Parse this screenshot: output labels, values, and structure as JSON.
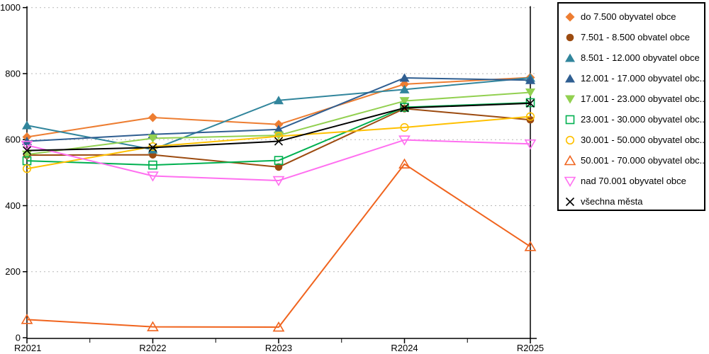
{
  "chart_data": {
    "type": "line",
    "title": "",
    "xlabel": "",
    "ylabel": "",
    "categories": [
      "R2021",
      "R2022",
      "R2023",
      "R2024",
      "R2025"
    ],
    "y_ticks": [
      0,
      200,
      400,
      600,
      800,
      1000
    ],
    "ylim": [
      0,
      1000
    ],
    "grid": "horizontal-dashed",
    "grid_color": "#b8b8b8",
    "axis_color": "#000000",
    "legend_position": "right-outside",
    "series": [
      {
        "name": "do 7.500 obyvatel obce",
        "color": "#ED7D31",
        "marker": "diamond",
        "filled": true,
        "values": [
          608,
          667,
          646,
          768,
          788
        ]
      },
      {
        "name": "7.501 - 8.500 obvatel obce",
        "color": "#9C4B10",
        "marker": "circle",
        "filled": true,
        "values": [
          553,
          554,
          517,
          694,
          660
        ]
      },
      {
        "name": "8.501 - 12.000 obyvatel obce",
        "color": "#31859C",
        "marker": "triangle-up",
        "filled": true,
        "values": [
          643,
          570,
          719,
          752,
          787
        ]
      },
      {
        "name": "12.001 - 17.000 obyvatel obc...",
        "color": "#2F5E91",
        "marker": "triangle-up",
        "filled": true,
        "values": [
          595,
          616,
          631,
          787,
          780
        ]
      },
      {
        "name": "17.001 - 23.000 obyvatel obc...",
        "color": "#92D050",
        "marker": "triangle-down",
        "filled": true,
        "values": [
          555,
          604,
          613,
          717,
          743
        ]
      },
      {
        "name": "23.001 - 30.000 obyvatel obc...",
        "color": "#00B050",
        "marker": "square",
        "filled": false,
        "values": [
          536,
          523,
          537,
          698,
          712
        ]
      },
      {
        "name": "30.001 - 50.000 obyvatel obc...",
        "color": "#FFC000",
        "marker": "circle",
        "filled": false,
        "values": [
          512,
          579,
          610,
          637,
          670
        ]
      },
      {
        "name": "50.001 - 70.000 obyvatel obc...",
        "color": "#F0641E",
        "marker": "triangle-up",
        "filled": false,
        "values": [
          55,
          33,
          32,
          526,
          276
        ]
      },
      {
        "name": "nad 70.001 obyvatel obce",
        "color": "#FF6FF0",
        "marker": "triangle-down",
        "filled": false,
        "values": [
          583,
          490,
          476,
          599,
          587
        ]
      },
      {
        "name": "všechna města",
        "color": "#000000",
        "marker": "x",
        "filled": false,
        "values": [
          567,
          576,
          595,
          696,
          710
        ]
      }
    ]
  }
}
